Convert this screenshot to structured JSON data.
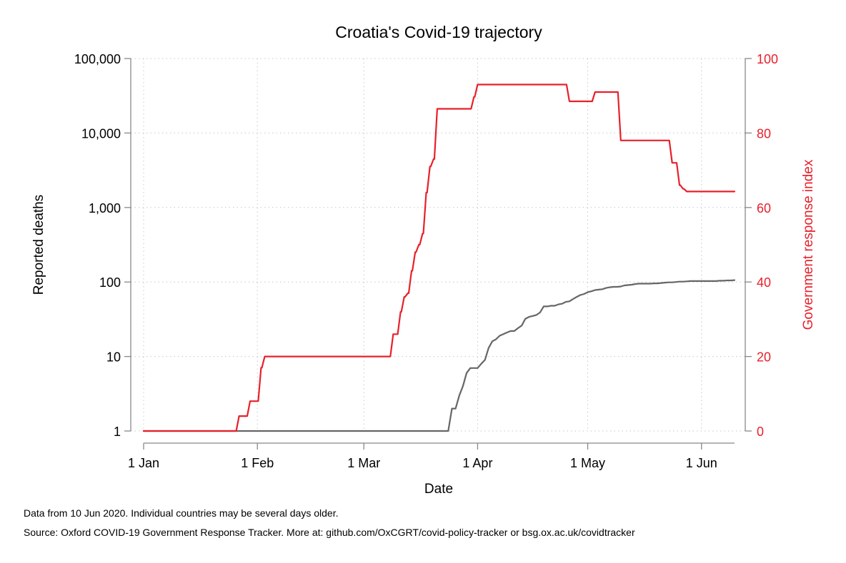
{
  "chart_data": {
    "type": "line",
    "title": "Croatia's Covid-19 trajectory",
    "xlabel": "Date",
    "ylabel_left": "Reported deaths",
    "ylabel_right": "Government response index",
    "x_start": "2020-01-01",
    "x_end": "2020-06-10",
    "x_ticks": [
      {
        "date": "2020-01-01",
        "label": "1 Jan"
      },
      {
        "date": "2020-02-01",
        "label": "1 Feb"
      },
      {
        "date": "2020-03-01",
        "label": "1 Mar"
      },
      {
        "date": "2020-04-01",
        "label": "1 Apr"
      },
      {
        "date": "2020-05-01",
        "label": "1 May"
      },
      {
        "date": "2020-06-01",
        "label": "1 Jun"
      }
    ],
    "y_left": {
      "scale": "log",
      "range": [
        1,
        100000
      ],
      "ticks": [
        {
          "value": 1,
          "label": "1"
        },
        {
          "value": 10,
          "label": "10"
        },
        {
          "value": 100,
          "label": "100"
        },
        {
          "value": 1000,
          "label": "1,000"
        },
        {
          "value": 10000,
          "label": "10,000"
        },
        {
          "value": 100000,
          "label": "100,000"
        }
      ]
    },
    "y_right": {
      "scale": "linear",
      "range": [
        0,
        100
      ],
      "ticks": [
        {
          "value": 0,
          "label": "0"
        },
        {
          "value": 20,
          "label": "20"
        },
        {
          "value": 40,
          "label": "40"
        },
        {
          "value": 60,
          "label": "60"
        },
        {
          "value": 80,
          "label": "80"
        },
        {
          "value": 100,
          "label": "100"
        }
      ]
    },
    "grid": true,
    "series": [
      {
        "axis": "left",
        "color": "#666666",
        "step": false,
        "points": [
          [
            "2020-01-01",
            1
          ],
          [
            "2020-03-24",
            1
          ],
          [
            "2020-03-25",
            2
          ],
          [
            "2020-03-26",
            2
          ],
          [
            "2020-03-27",
            3
          ],
          [
            "2020-03-28",
            4
          ],
          [
            "2020-03-29",
            6
          ],
          [
            "2020-03-30",
            7
          ],
          [
            "2020-03-31",
            7
          ],
          [
            "2020-04-01",
            7
          ],
          [
            "2020-04-02",
            8
          ],
          [
            "2020-04-03",
            9
          ],
          [
            "2020-04-04",
            13
          ],
          [
            "2020-04-05",
            16
          ],
          [
            "2020-04-06",
            17
          ],
          [
            "2020-04-07",
            19
          ],
          [
            "2020-04-08",
            20
          ],
          [
            "2020-04-09",
            21
          ],
          [
            "2020-04-10",
            22
          ],
          [
            "2020-04-11",
            22
          ],
          [
            "2020-04-12",
            24
          ],
          [
            "2020-04-13",
            26
          ],
          [
            "2020-04-14",
            32
          ],
          [
            "2020-04-15",
            34
          ],
          [
            "2020-04-16",
            35
          ],
          [
            "2020-04-17",
            36
          ],
          [
            "2020-04-18",
            39
          ],
          [
            "2020-04-19",
            47
          ],
          [
            "2020-04-20",
            47
          ],
          [
            "2020-04-21",
            48
          ],
          [
            "2020-04-22",
            48
          ],
          [
            "2020-04-23",
            50
          ],
          [
            "2020-04-24",
            51
          ],
          [
            "2020-04-25",
            54
          ],
          [
            "2020-04-26",
            55
          ],
          [
            "2020-04-27",
            59
          ],
          [
            "2020-04-28",
            63
          ],
          [
            "2020-04-29",
            67
          ],
          [
            "2020-04-30",
            69
          ],
          [
            "2020-05-01",
            73
          ],
          [
            "2020-05-02",
            75
          ],
          [
            "2020-05-03",
            78
          ],
          [
            "2020-05-04",
            79
          ],
          [
            "2020-05-05",
            80
          ],
          [
            "2020-05-06",
            83
          ],
          [
            "2020-05-07",
            85
          ],
          [
            "2020-05-08",
            86
          ],
          [
            "2020-05-09",
            86
          ],
          [
            "2020-05-10",
            87
          ],
          [
            "2020-05-11",
            90
          ],
          [
            "2020-05-12",
            91
          ],
          [
            "2020-05-13",
            92
          ],
          [
            "2020-05-14",
            94
          ],
          [
            "2020-05-15",
            95
          ],
          [
            "2020-05-16",
            95
          ],
          [
            "2020-05-17",
            95
          ],
          [
            "2020-05-18",
            95
          ],
          [
            "2020-05-19",
            96
          ],
          [
            "2020-05-20",
            96
          ],
          [
            "2020-05-21",
            97
          ],
          [
            "2020-05-22",
            98
          ],
          [
            "2020-05-23",
            99
          ],
          [
            "2020-05-24",
            99
          ],
          [
            "2020-05-25",
            100
          ],
          [
            "2020-05-26",
            101
          ],
          [
            "2020-05-27",
            101
          ],
          [
            "2020-05-28",
            102
          ],
          [
            "2020-05-29",
            103
          ],
          [
            "2020-05-30",
            103
          ],
          [
            "2020-05-31",
            103
          ],
          [
            "2020-06-01",
            103
          ],
          [
            "2020-06-02",
            103
          ],
          [
            "2020-06-03",
            103
          ],
          [
            "2020-06-04",
            103
          ],
          [
            "2020-06-05",
            103
          ],
          [
            "2020-06-06",
            104
          ],
          [
            "2020-06-07",
            104
          ],
          [
            "2020-06-08",
            105
          ],
          [
            "2020-06-09",
            105
          ],
          [
            "2020-06-10",
            106
          ]
        ]
      },
      {
        "axis": "right",
        "color": "#e8202a",
        "step": true,
        "points": [
          [
            "2020-01-01",
            0
          ],
          [
            "2020-01-27",
            4
          ],
          [
            "2020-01-30",
            8
          ],
          [
            "2020-02-02",
            17
          ],
          [
            "2020-02-03",
            20
          ],
          [
            "2020-03-09",
            26
          ],
          [
            "2020-03-11",
            32
          ],
          [
            "2020-03-12",
            36
          ],
          [
            "2020-03-13",
            37
          ],
          [
            "2020-03-14",
            43
          ],
          [
            "2020-03-15",
            48
          ],
          [
            "2020-03-16",
            50
          ],
          [
            "2020-03-17",
            53
          ],
          [
            "2020-03-18",
            64
          ],
          [
            "2020-03-19",
            71
          ],
          [
            "2020-03-20",
            73
          ],
          [
            "2020-03-21",
            86.5
          ],
          [
            "2020-03-31",
            89.7
          ],
          [
            "2020-04-01",
            93
          ],
          [
            "2020-04-26",
            88.5
          ],
          [
            "2020-05-03",
            91
          ],
          [
            "2020-05-10",
            78
          ],
          [
            "2020-05-24",
            72
          ],
          [
            "2020-05-26",
            66
          ],
          [
            "2020-05-27",
            65
          ],
          [
            "2020-05-28",
            64.3
          ],
          [
            "2020-06-10",
            64.3
          ]
        ]
      }
    ]
  },
  "notes": {
    "data_note": "Data from 10 Jun 2020. Individual countries may be several days older.",
    "source_note": "Source: Oxford COVID-19 Government Response Tracker. More at: github.com/OxCGRT/covid-policy-tracker or bsg.ox.ac.uk/covidtracker"
  }
}
